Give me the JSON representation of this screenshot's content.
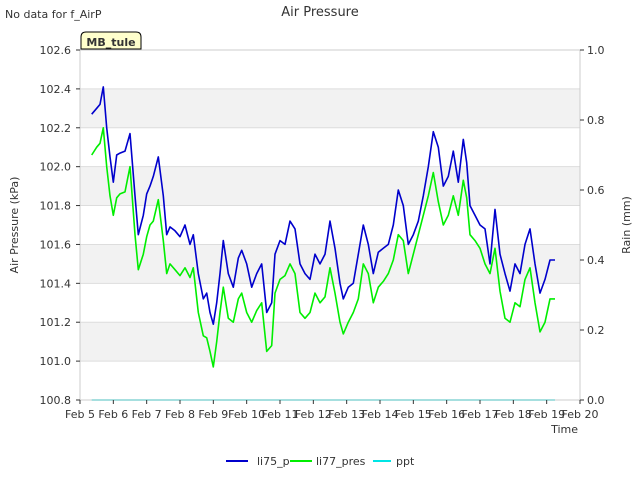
{
  "chart_data": {
    "type": "line",
    "title": "Air Pressure",
    "note": "No data for f_AirP",
    "site_label": "MB_tule",
    "xlabel": "Time",
    "ylabel": "Air Pressure (kPa)",
    "y2label": "Rain (mm)",
    "xlim": [
      5,
      20
    ],
    "ylim": [
      100.8,
      102.6
    ],
    "y2lim": [
      0.0,
      1.0
    ],
    "x_ticks": [
      5,
      6,
      7,
      8,
      9,
      10,
      11,
      12,
      13,
      14,
      15,
      16,
      17,
      18,
      19,
      20
    ],
    "x_tick_labels": [
      "Feb 5",
      "Feb 6",
      "Feb 7",
      "Feb 8",
      "Feb 9",
      "Feb 10",
      "Feb 11",
      "Feb 12",
      "Feb 13",
      "Feb 14",
      "Feb 15",
      "Feb 16",
      "Feb 17",
      "Feb 18",
      "Feb 19",
      "Feb 20"
    ],
    "y_ticks": [
      100.8,
      101.0,
      101.2,
      101.4,
      101.6,
      101.8,
      102.0,
      102.2,
      102.4,
      102.6
    ],
    "y_tick_labels": [
      "100.8",
      "101.0",
      "101.2",
      "101.4",
      "101.6",
      "101.8",
      "102.0",
      "102.2",
      "102.4",
      "102.6"
    ],
    "y2_ticks": [
      0.0,
      0.2,
      0.4,
      0.6,
      0.8,
      1.0
    ],
    "y2_tick_labels": [
      "0.0",
      "0.2",
      "0.4",
      "0.6",
      "0.8",
      "1.0"
    ],
    "legend": [
      "li75_p",
      "li77_pres",
      "ppt"
    ],
    "series": [
      {
        "name": "li75_p",
        "color": "#0000cc",
        "axis": "left",
        "x": [
          5.35,
          5.5,
          5.6,
          5.7,
          5.8,
          5.9,
          6.0,
          6.1,
          6.2,
          6.35,
          6.5,
          6.65,
          6.75,
          6.9,
          7.0,
          7.1,
          7.2,
          7.35,
          7.5,
          7.6,
          7.7,
          7.85,
          8.0,
          8.15,
          8.3,
          8.4,
          8.55,
          8.7,
          8.8,
          8.9,
          9.0,
          9.1,
          9.2,
          9.3,
          9.45,
          9.6,
          9.75,
          9.85,
          10.0,
          10.15,
          10.3,
          10.45,
          10.6,
          10.75,
          10.85,
          11.0,
          11.15,
          11.3,
          11.45,
          11.6,
          11.75,
          11.9,
          12.05,
          12.2,
          12.35,
          12.5,
          12.65,
          12.8,
          12.9,
          13.05,
          13.2,
          13.35,
          13.5,
          13.65,
          13.8,
          13.95,
          14.1,
          14.25,
          14.4,
          14.55,
          14.7,
          14.85,
          15.0,
          15.15,
          15.3,
          15.45,
          15.6,
          15.75,
          15.9,
          16.05,
          16.2,
          16.35,
          16.5,
          16.6,
          16.7,
          16.85,
          17.0,
          17.15,
          17.3,
          17.45,
          17.6,
          17.75,
          17.9,
          18.05,
          18.2,
          18.35,
          18.5,
          18.65,
          18.8,
          18.95,
          19.1,
          19.25
        ],
        "y": [
          102.27,
          102.3,
          102.32,
          102.41,
          102.2,
          102.05,
          101.92,
          102.06,
          102.07,
          102.08,
          102.17,
          101.85,
          101.65,
          101.75,
          101.86,
          101.9,
          101.95,
          102.05,
          101.85,
          101.65,
          101.69,
          101.67,
          101.64,
          101.7,
          101.6,
          101.65,
          101.45,
          101.32,
          101.35,
          101.25,
          101.19,
          101.3,
          101.45,
          101.62,
          101.45,
          101.38,
          101.53,
          101.57,
          101.5,
          101.38,
          101.45,
          101.5,
          101.25,
          101.3,
          101.55,
          101.62,
          101.6,
          101.72,
          101.68,
          101.5,
          101.45,
          101.42,
          101.55,
          101.5,
          101.55,
          101.72,
          101.58,
          101.4,
          101.32,
          101.38,
          101.4,
          101.55,
          101.7,
          101.6,
          101.45,
          101.56,
          101.58,
          101.6,
          101.7,
          101.88,
          101.8,
          101.6,
          101.65,
          101.72,
          101.85,
          102.0,
          102.18,
          102.1,
          101.9,
          101.95,
          102.08,
          101.92,
          102.14,
          102.02,
          101.8,
          101.75,
          101.7,
          101.68,
          101.5,
          101.78,
          101.55,
          101.45,
          101.36,
          101.5,
          101.45,
          101.6,
          101.68,
          101.5,
          101.35,
          101.42,
          101.52,
          101.52
        ]
      },
      {
        "name": "li77_pres",
        "color": "#00ee00",
        "axis": "left",
        "x": [
          5.35,
          5.5,
          5.6,
          5.7,
          5.8,
          5.9,
          6.0,
          6.1,
          6.2,
          6.35,
          6.5,
          6.65,
          6.75,
          6.9,
          7.0,
          7.1,
          7.2,
          7.35,
          7.5,
          7.6,
          7.7,
          7.85,
          8.0,
          8.15,
          8.3,
          8.4,
          8.55,
          8.7,
          8.8,
          8.9,
          9.0,
          9.1,
          9.2,
          9.3,
          9.45,
          9.6,
          9.75,
          9.85,
          10.0,
          10.15,
          10.3,
          10.45,
          10.6,
          10.75,
          10.85,
          11.0,
          11.15,
          11.3,
          11.45,
          11.6,
          11.75,
          11.9,
          12.05,
          12.2,
          12.35,
          12.5,
          12.65,
          12.8,
          12.9,
          13.05,
          13.2,
          13.35,
          13.5,
          13.65,
          13.8,
          13.95,
          14.1,
          14.25,
          14.4,
          14.55,
          14.7,
          14.85,
          15.0,
          15.15,
          15.3,
          15.45,
          15.6,
          15.75,
          15.9,
          16.05,
          16.2,
          16.35,
          16.5,
          16.6,
          16.7,
          16.85,
          17.0,
          17.15,
          17.3,
          17.45,
          17.6,
          17.75,
          17.9,
          18.05,
          18.2,
          18.35,
          18.5,
          18.65,
          18.8,
          18.95,
          19.1,
          19.25
        ],
        "y": [
          102.06,
          102.1,
          102.12,
          102.2,
          102.0,
          101.85,
          101.75,
          101.84,
          101.86,
          101.87,
          102.0,
          101.65,
          101.47,
          101.55,
          101.64,
          101.7,
          101.72,
          101.83,
          101.62,
          101.45,
          101.5,
          101.47,
          101.44,
          101.48,
          101.43,
          101.48,
          101.25,
          101.13,
          101.12,
          101.05,
          100.97,
          101.1,
          101.25,
          101.38,
          101.22,
          101.2,
          101.32,
          101.35,
          101.25,
          101.2,
          101.26,
          101.3,
          101.05,
          101.08,
          101.35,
          101.42,
          101.44,
          101.5,
          101.45,
          101.25,
          101.22,
          101.25,
          101.35,
          101.3,
          101.33,
          101.48,
          101.35,
          101.2,
          101.14,
          101.2,
          101.25,
          101.32,
          101.5,
          101.45,
          101.3,
          101.38,
          101.41,
          101.45,
          101.52,
          101.65,
          101.62,
          101.45,
          101.55,
          101.65,
          101.75,
          101.85,
          101.97,
          101.82,
          101.7,
          101.75,
          101.85,
          101.75,
          101.93,
          101.84,
          101.65,
          101.62,
          101.58,
          101.5,
          101.45,
          101.58,
          101.36,
          101.22,
          101.2,
          101.3,
          101.28,
          101.42,
          101.48,
          101.3,
          101.15,
          101.2,
          101.32,
          101.32
        ]
      },
      {
        "name": "ppt",
        "color": "#00e5e5",
        "axis": "right",
        "x": [
          5.35,
          19.25
        ],
        "y": [
          0.0,
          0.0
        ]
      }
    ]
  }
}
